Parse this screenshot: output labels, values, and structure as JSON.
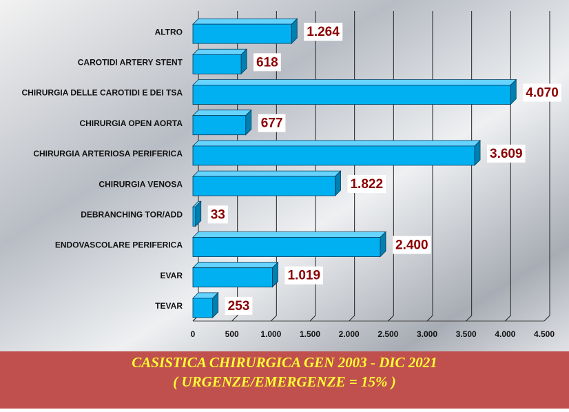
{
  "chart_data": {
    "type": "bar",
    "orientation": "horizontal",
    "title": "CASISTICA CHIRURGICA GEN 2003 - DIC 2021",
    "subtitle": "( URGENZE/EMERGENZE = 15% )",
    "categories": [
      "ALTRO",
      "CAROTIDI ARTERY STENT",
      "CHIRURGIA DELLE CAROTIDI E DEI TSA",
      "CHIRURGIA OPEN AORTA",
      "CHIRURGIA ARTERIOSA PERIFERICA",
      "CHIRURGIA VENOSA",
      "DEBRANCHING TOR/ADD",
      "ENDOVASCOLARE PERIFERICA",
      "EVAR",
      "TEVAR"
    ],
    "values": [
      1264,
      618,
      4070,
      677,
      3609,
      1822,
      33,
      2400,
      1019,
      253
    ],
    "value_labels": [
      "1.264",
      "618",
      "4.070",
      "677",
      "3.609",
      "1.822",
      "33",
      "2.400",
      "1.019",
      "253"
    ],
    "color": "#00b0f0",
    "xlim": [
      0,
      4500
    ],
    "xticks": [
      0,
      500,
      {
        "value": 1000,
        "label": "1.000"
      },
      {
        "value": 1500,
        "label": "1.500"
      },
      {
        "value": 2000,
        "label": "2.000"
      },
      {
        "value": 2500,
        "label": "2.500"
      },
      {
        "value": 3000,
        "label": "3.000"
      },
      {
        "value": 3500,
        "label": "3.500"
      },
      {
        "value": 4000,
        "label": "4.000"
      },
      {
        "value": 4500,
        "label": "4.500"
      }
    ],
    "grid": true
  }
}
